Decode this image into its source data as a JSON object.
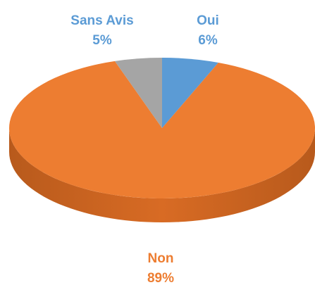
{
  "chart_data": {
    "type": "pie",
    "categories": [
      "Oui",
      "Non",
      "Sans Avis"
    ],
    "values": [
      6,
      89,
      5
    ],
    "value_labels": [
      "6%",
      "89%",
      "5%"
    ],
    "colors": [
      "#5b9bd5",
      "#ed7d31",
      "#a5a5a5"
    ],
    "label_colors": [
      "#5b9bd5",
      "#ed7d31",
      "#5b9bd5"
    ]
  }
}
